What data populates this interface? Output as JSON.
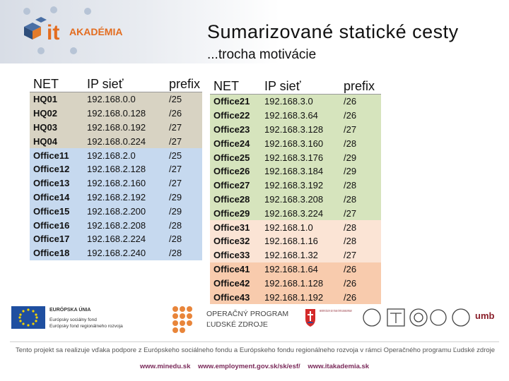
{
  "header": {
    "logo_text": "AKADÉMIA",
    "logo_mark": "it",
    "title": "Sumarizované statické cesty",
    "subtitle": "...trocha motivácie"
  },
  "colors": {
    "grey": "#d8d3c3",
    "blue": "#c6d9ef",
    "green": "#d6e4bd",
    "peach_light": "#fbe4d5",
    "peach": "#f8cbad"
  },
  "left_table": {
    "headers": [
      "NET",
      "IP sieť",
      "prefix"
    ],
    "rows": [
      {
        "net": "HQ01",
        "ip": "192.168.0.0",
        "prefix": "/25",
        "group": "grey"
      },
      {
        "net": "HQ02",
        "ip": "192.168.0.128",
        "prefix": "/26",
        "group": "grey"
      },
      {
        "net": "HQ03",
        "ip": "192.168.0.192",
        "prefix": "/27",
        "group": "grey"
      },
      {
        "net": "HQ04",
        "ip": "192.168.0.224",
        "prefix": "/27",
        "group": "grey"
      },
      {
        "net": "Office11",
        "ip": "192.168.2.0",
        "prefix": "/25",
        "group": "blue"
      },
      {
        "net": "Office12",
        "ip": "192.168.2.128",
        "prefix": "/27",
        "group": "blue"
      },
      {
        "net": "Office13",
        "ip": "192.168.2.160",
        "prefix": "/27",
        "group": "blue"
      },
      {
        "net": "Office14",
        "ip": "192.168.2.192",
        "prefix": "/29",
        "group": "blue"
      },
      {
        "net": "Office15",
        "ip": "192.168.2.200",
        "prefix": "/29",
        "group": "blue"
      },
      {
        "net": "Office16",
        "ip": "192.168.2.208",
        "prefix": "/28",
        "group": "blue"
      },
      {
        "net": "Office17",
        "ip": "192.168.2.224",
        "prefix": "/28",
        "group": "blue"
      },
      {
        "net": "Office18",
        "ip": "192.168.2.240",
        "prefix": "/28",
        "group": "blue"
      }
    ]
  },
  "right_table": {
    "headers": [
      "NET",
      "IP sieť",
      "prefix"
    ],
    "rows": [
      {
        "net": "Office21",
        "ip": "192.168.3.0",
        "prefix": "/26",
        "group": "green"
      },
      {
        "net": "Office22",
        "ip": "192.168.3.64",
        "prefix": "/26",
        "group": "green"
      },
      {
        "net": "Office23",
        "ip": "192.168.3.128",
        "prefix": "/27",
        "group": "green"
      },
      {
        "net": "Office24",
        "ip": "192.168.3.160",
        "prefix": "/28",
        "group": "green"
      },
      {
        "net": "Office25",
        "ip": "192.168.3.176",
        "prefix": "/29",
        "group": "green"
      },
      {
        "net": "Office26",
        "ip": "192.168.3.184",
        "prefix": "/29",
        "group": "green"
      },
      {
        "net": "Office27",
        "ip": "192.168.3.192",
        "prefix": "/28",
        "group": "green"
      },
      {
        "net": "Office28",
        "ip": "192.168.3.208",
        "prefix": "/28",
        "group": "green"
      },
      {
        "net": "Office29",
        "ip": "192.168.3.224",
        "prefix": "/27",
        "group": "green"
      },
      {
        "net": "Office31",
        "ip": "192.168.1.0",
        "prefix": "/28",
        "group": "peach_light"
      },
      {
        "net": "Office32",
        "ip": "192.168.1.16",
        "prefix": "/28",
        "group": "peach_light"
      },
      {
        "net": "Office33",
        "ip": "192.168.1.32",
        "prefix": "/27",
        "group": "peach_light"
      },
      {
        "net": "Office41",
        "ip": "192.168.1.64",
        "prefix": "/26",
        "group": "peach"
      },
      {
        "net": "Office42",
        "ip": "192.168.1.128",
        "prefix": "/26",
        "group": "peach"
      },
      {
        "net": "Office43",
        "ip": "192.168.1.192",
        "prefix": "/26",
        "group": "peach"
      }
    ]
  },
  "footer": {
    "eu_title": "EURÓPSKA ÚNIA",
    "eu_line1": "Európsky sociálny fond",
    "eu_line2": "Európsky fond regionálneho rozvoja",
    "op_line1": "OPERAČNÝ PROGRAM",
    "op_line2": "ĽUDSKÉ ZDROJE",
    "ministry": "MINISTERSTVO ŠKOLSTVA, VEDY, VÝSKUMU A ŠPORTU SLOVENSKEJ REPUBLIKY",
    "umb": "umb",
    "statement": "Tento projekt sa realizuje vďaka podpore z Európskeho sociálneho fondu a Európskeho fondu regionálneho rozvoja v rámci Operačného programu Ľudské zdroje",
    "links": [
      "www.minedu.sk",
      "www.employment.gov.sk/sk/esf/",
      "www.itakademia.sk"
    ]
  }
}
